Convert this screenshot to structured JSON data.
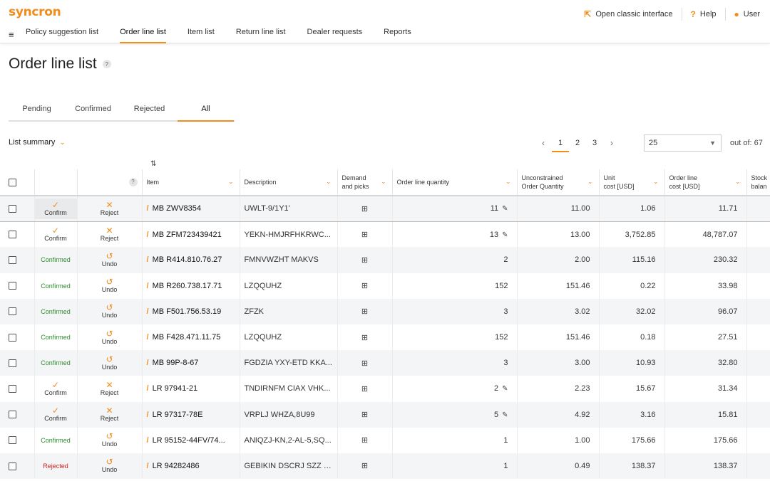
{
  "app": {
    "logo": "syncron"
  },
  "top_right": {
    "classic": "Open classic interface",
    "help": "Help",
    "user": "User"
  },
  "nav": [
    "Policy suggestion list",
    "Order line list",
    "Item list",
    "Return line list",
    "Dealer requests",
    "Reports"
  ],
  "page": {
    "title": "Order line list",
    "help": "?"
  },
  "tabs": [
    "Pending",
    "Confirmed",
    "Rejected",
    "All"
  ],
  "summary": {
    "label": "List summary"
  },
  "pager": {
    "pages": [
      "1",
      "2",
      "3"
    ],
    "rows_per_page": "25",
    "out_of": "out of: 67"
  },
  "table": {
    "headers": {
      "item": "Item",
      "description": "Description",
      "demand1": "Demand",
      "demand2": "and picks",
      "qty": "Order line quantity",
      "unc1": "Unconstrained",
      "unc2": "Order Quantity",
      "unit1": "Unit",
      "unit2": "cost [USD]",
      "olc1": "Order line",
      "olc2": "cost [USD]",
      "stock1": "Stock",
      "stock2": "balan"
    },
    "rows": [
      {
        "status": "pending",
        "a1": "Confirm",
        "a2": "Reject",
        "item": "MB ZWV8354",
        "desc": "UWLT-9/1Y1'",
        "qty": "11",
        "unc": "11.00",
        "unit": "1.06",
        "cost": "11.71"
      },
      {
        "status": "pending",
        "a1": "Confirm",
        "a2": "Reject",
        "item": "MB ZFM723439421",
        "desc": "YEKN-HMJRFHKRWC...",
        "qty": "13",
        "unc": "13.00",
        "unit": "3,752.85",
        "cost": "48,787.07"
      },
      {
        "status": "confirmed",
        "a1": "Confirmed",
        "a2": "Undo",
        "item": "MB R414.810.76.27",
        "desc": "FMNVWZHT MAKVS",
        "qty": "2",
        "unc": "2.00",
        "unit": "115.16",
        "cost": "230.32"
      },
      {
        "status": "confirmed",
        "a1": "Confirmed",
        "a2": "Undo",
        "item": "MB R260.738.17.71",
        "desc": "LZQQUHZ",
        "qty": "152",
        "unc": "151.46",
        "unit": "0.22",
        "cost": "33.98"
      },
      {
        "status": "confirmed",
        "a1": "Confirmed",
        "a2": "Undo",
        "item": "MB F501.756.53.19",
        "desc": "ZFZK",
        "qty": "3",
        "unc": "3.02",
        "unit": "32.02",
        "cost": "96.07"
      },
      {
        "status": "confirmed",
        "a1": "Confirmed",
        "a2": "Undo",
        "item": "MB F428.471.11.75",
        "desc": "LZQQUHZ",
        "qty": "152",
        "unc": "151.46",
        "unit": "0.18",
        "cost": "27.51"
      },
      {
        "status": "confirmed",
        "a1": "Confirmed",
        "a2": "Undo",
        "item": "MB 99P-8-67",
        "desc": "FGDZIA YXY-ETD KKA...",
        "qty": "3",
        "unc": "3.00",
        "unit": "10.93",
        "cost": "32.80"
      },
      {
        "status": "pending",
        "a1": "Confirm",
        "a2": "Reject",
        "item": "LR 97941-21",
        "desc": "TNDIRNFM CIAX VHK...",
        "qty": "2",
        "unc": "2.23",
        "unit": "15.67",
        "cost": "31.34"
      },
      {
        "status": "pending",
        "a1": "Confirm",
        "a2": "Reject",
        "item": "LR 97317-78E",
        "desc": "VRPLJ WHZA,8U99",
        "qty": "5",
        "unc": "4.92",
        "unit": "3.16",
        "cost": "15.81"
      },
      {
        "status": "confirmed",
        "a1": "Confirmed",
        "a2": "Undo",
        "item": "LR 95152-44FV/74...",
        "desc": "ANIQZJ-KN,2-AL-5,SQ...",
        "qty": "1",
        "unc": "1.00",
        "unit": "175.66",
        "cost": "175.66"
      },
      {
        "status": "rejected",
        "a1": "Rejected",
        "a2": "Undo",
        "item": "LR 94282486",
        "desc": "GEBIKIN DSCRJ SZZ C...",
        "qty": "1",
        "unc": "0.49",
        "unit": "138.37",
        "cost": "138.37"
      }
    ]
  },
  "colors": {
    "accent": "#f28c1b",
    "confirmed": "#2e8b2e",
    "rejected": "#cc2222"
  }
}
